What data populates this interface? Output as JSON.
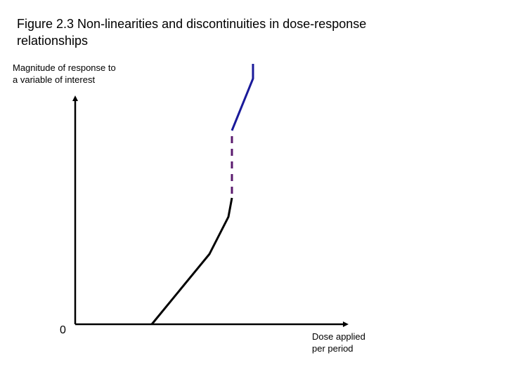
{
  "title": {
    "line1": "Figure 2.3  Non-linearities and discontinuities in dose-response",
    "line2": "relationships"
  },
  "y_axis": {
    "label_line1": "Magnitude of response to",
    "label_line2": "a variable of interest"
  },
  "x_axis": {
    "label_line1": "Dose applied",
    "label_line2": "per period"
  },
  "origin_label": "0",
  "colors": {
    "axis": "#000000",
    "lower_curve": "#000000",
    "gap": "#5a1a6e",
    "upper_curve": "#1a1a9a"
  }
}
